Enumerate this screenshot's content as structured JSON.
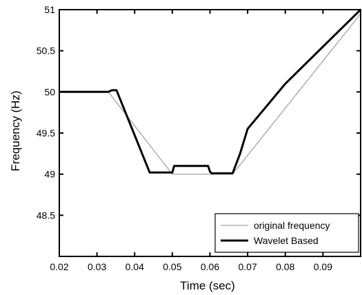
{
  "chart_data": {
    "type": "line",
    "xlabel": "Time (sec)",
    "ylabel": "Frequency (Hz)",
    "xlim": [
      0.02,
      0.1
    ],
    "ylim": [
      48,
      51
    ],
    "xticks": [
      0.02,
      0.03,
      0.04,
      0.05,
      0.06,
      0.07,
      0.08,
      0.09
    ],
    "xtick_labels": [
      "0.02",
      "0.03",
      "0.04",
      "0.05",
      "0.06",
      "0.07",
      "0.08",
      "0.09"
    ],
    "yticks": [
      48.5,
      49,
      49.5,
      50,
      50.5,
      51
    ],
    "ytick_labels": [
      "48.5",
      "49",
      "49.5",
      "50",
      "50.5",
      "51"
    ],
    "grid": false,
    "legend_position": "bottom-right",
    "series": [
      {
        "name": "original frequency",
        "color": "#8a8a8a",
        "style": "thin",
        "x": [
          0.02,
          0.033,
          0.05,
          0.066,
          0.1
        ],
        "y": [
          50.0,
          50.0,
          49.0,
          49.0,
          50.95
        ]
      },
      {
        "name": "Wavelet Based",
        "color": "#000000",
        "style": "thick",
        "x": [
          0.02,
          0.033,
          0.034,
          0.0352,
          0.044,
          0.05,
          0.0505,
          0.0595,
          0.06,
          0.0605,
          0.066,
          0.068,
          0.07,
          0.08,
          0.1
        ],
        "y": [
          50.0,
          50.0,
          50.02,
          50.02,
          49.02,
          49.02,
          49.1,
          49.1,
          49.03,
          49.01,
          49.01,
          49.25,
          49.55,
          50.1,
          51.0
        ]
      }
    ]
  }
}
